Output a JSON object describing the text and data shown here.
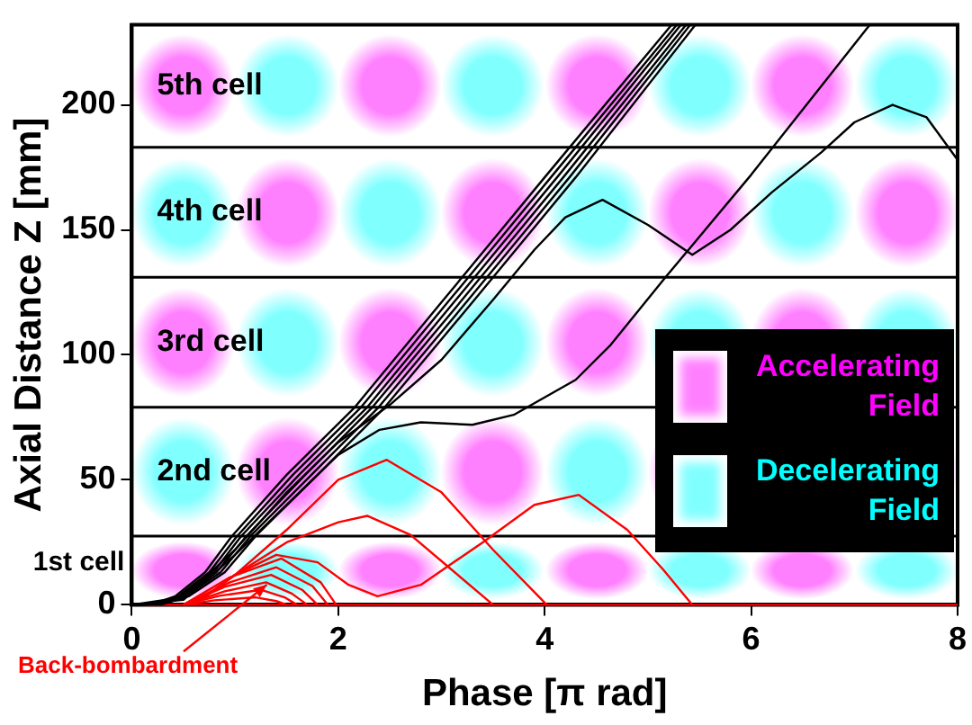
{
  "chart_data": {
    "type": "line",
    "xlabel": "Phase [π rad]",
    "ylabel": "Axial Distance Z [mm]",
    "xlim": [
      0,
      8
    ],
    "ylim": [
      0,
      232
    ],
    "xticks": [
      0,
      2,
      4,
      6,
      8
    ],
    "yticks": [
      0,
      50,
      100,
      150,
      200
    ],
    "ref_lines": [
      {
        "axis": "y",
        "value": 27.5
      },
      {
        "axis": "y",
        "value": 79
      },
      {
        "axis": "y",
        "value": 131
      },
      {
        "axis": "y",
        "value": 183
      }
    ],
    "annotations": [
      "1st cell",
      "2nd cell",
      "3rd cell",
      "4th cell",
      "5th cell",
      "Accelerating Field",
      "Decelerating Field",
      {
        "text": "Back-bombardment",
        "x": 1.3,
        "y": 8
      }
    ],
    "series": [
      {
        "type": "line",
        "color": "#000000",
        "x": [
          0,
          0.2,
          0.42,
          0.71,
          0.97,
          1.5,
          2.16,
          3.0,
          4.0,
          5.23
        ],
        "values": [
          0,
          0.3,
          3.4,
          13,
          27.5,
          52,
          79,
          121,
          171,
          232
        ]
      },
      {
        "type": "line",
        "color": "#000000",
        "x": [
          0,
          0.22,
          0.45,
          0.75,
          1.02,
          1.56,
          2.22,
          3.06,
          4.06,
          5.28
        ],
        "values": [
          0,
          0.3,
          3.4,
          13,
          27.5,
          52,
          79,
          121,
          171,
          232
        ]
      },
      {
        "type": "line",
        "color": "#000000",
        "x": [
          0,
          0.24,
          0.47,
          0.79,
          1.06,
          1.62,
          2.28,
          3.12,
          4.12,
          5.32
        ],
        "values": [
          0,
          0.3,
          3.4,
          13,
          27.5,
          52,
          79,
          121,
          171,
          232
        ]
      },
      {
        "type": "line",
        "color": "#000000",
        "x": [
          0,
          0.26,
          0.5,
          0.82,
          1.11,
          1.68,
          2.33,
          3.18,
          4.18,
          5.37
        ],
        "values": [
          0,
          0.3,
          3.4,
          13,
          27.5,
          52,
          79,
          121,
          171,
          232
        ]
      },
      {
        "type": "line",
        "color": "#000000",
        "x": [
          0,
          0.28,
          0.52,
          0.86,
          1.15,
          1.74,
          2.39,
          3.24,
          4.24,
          5.41
        ],
        "values": [
          0,
          0.3,
          3.4,
          13,
          27.5,
          52,
          79,
          121,
          171,
          232
        ]
      },
      {
        "type": "line",
        "color": "#000000",
        "x": [
          0,
          0.3,
          0.55,
          0.9,
          1.2,
          1.8,
          2.45,
          3.3,
          4.3,
          5.46
        ],
        "values": [
          0,
          0.3,
          3.4,
          13,
          27.5,
          52,
          79,
          121,
          171,
          232
        ]
      },
      {
        "type": "line",
        "color": "#000000",
        "x": [
          0,
          0.5,
          1,
          1.5,
          2.0,
          2.4,
          2.8,
          3.3,
          3.7,
          4.3,
          4.64,
          5.17,
          6,
          7.15
        ],
        "values": [
          0,
          2,
          20,
          40,
          60,
          70,
          73,
          72,
          76,
          90,
          104,
          131,
          172,
          232
        ]
      },
      {
        "type": "line",
        "color": "#000000",
        "x": [
          0,
          0.5,
          1,
          1.5,
          2.0,
          2.5,
          3.0,
          3.5,
          3.9,
          4.2,
          4.56,
          5.0,
          5.43,
          5.8,
          6.2,
          6.68,
          7.0,
          7.37,
          7.7,
          8.0
        ],
        "values": [
          0,
          3,
          22,
          45,
          65,
          80,
          98,
          122,
          142,
          155,
          162,
          152,
          140,
          150,
          165,
          181,
          193,
          200,
          195,
          178
        ]
      },
      {
        "type": "line",
        "color": "#ff0000",
        "x": [
          0,
          8
        ],
        "values": [
          0,
          0
        ]
      },
      {
        "type": "line",
        "color": "#ff0000",
        "x": [
          0.5,
          0.8,
          1.2,
          1.4,
          1.5
        ],
        "values": [
          0,
          1.8,
          3,
          1.5,
          0
        ]
      },
      {
        "type": "line",
        "color": "#ff0000",
        "x": [
          0.5,
          0.85,
          1.25,
          1.48,
          1.6
        ],
        "values": [
          0,
          3.6,
          6,
          3,
          0
        ]
      },
      {
        "type": "line",
        "color": "#ff0000",
        "x": [
          0.5,
          0.9,
          1.3,
          1.55,
          1.7
        ],
        "values": [
          0,
          5.4,
          9,
          4.5,
          0
        ]
      },
      {
        "type": "line",
        "color": "#ff0000",
        "x": [
          0.5,
          0.9,
          1.35,
          1.65,
          1.8
        ],
        "values": [
          0,
          7.2,
          12,
          6,
          0
        ]
      },
      {
        "type": "line",
        "color": "#ff0000",
        "x": [
          0.5,
          0.95,
          1.4,
          1.75,
          1.9
        ],
        "values": [
          0,
          9,
          15,
          7.5,
          0
        ]
      },
      {
        "type": "line",
        "color": "#ff0000",
        "x": [
          0.5,
          0.95,
          1.45,
          1.83,
          1.98
        ],
        "values": [
          0,
          11,
          18.5,
          9,
          0
        ]
      },
      {
        "type": "line",
        "color": "#ff0000",
        "x": [
          0.6,
          1.0,
          1.5,
          2.0,
          2.47,
          3.0,
          3.5,
          4.02
        ],
        "values": [
          0,
          12,
          30,
          50,
          58,
          45,
          22,
          0
        ]
      },
      {
        "type": "line",
        "color": "#ff0000",
        "x": [
          0.6,
          1.0,
          1.5,
          2.0,
          2.28,
          2.7,
          3.1,
          3.5
        ],
        "values": [
          0,
          12,
          25,
          33,
          35.6,
          28,
          14,
          0
        ]
      },
      {
        "type": "line",
        "color": "#ff0000",
        "x": [
          0.6,
          1.0,
          1.4,
          1.8,
          2.1,
          2.38,
          2.8,
          3.4,
          3.9,
          4.33,
          4.8,
          5.15,
          5.43
        ],
        "values": [
          0,
          12,
          20,
          17,
          8,
          3.4,
          8,
          25,
          40,
          44,
          30,
          14,
          0
        ]
      }
    ]
  }
}
